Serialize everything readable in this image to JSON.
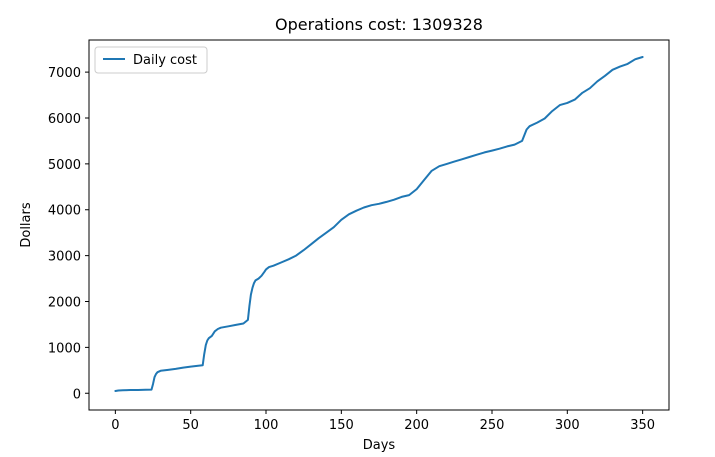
{
  "chart_data": {
    "type": "line",
    "title": "Operations cost: 1309328",
    "xlabel": "Days",
    "ylabel": "Dollars",
    "xlim": [
      -17.5,
      367.5
    ],
    "ylim": [
      -365,
      7700
    ],
    "xticks": [
      0,
      50,
      100,
      150,
      200,
      250,
      300,
      350
    ],
    "yticks": [
      0,
      1000,
      2000,
      3000,
      4000,
      5000,
      6000,
      7000
    ],
    "grid": false,
    "legend_position": "upper-left",
    "colors": {
      "series": "#1f77b4"
    },
    "series": [
      {
        "name": "Daily cost",
        "x": [
          0,
          2,
          5,
          10,
          15,
          20,
          24,
          25,
          26,
          27,
          28,
          30,
          35,
          40,
          45,
          50,
          55,
          58,
          59,
          60,
          61,
          62,
          64,
          66,
          68,
          70,
          75,
          80,
          85,
          88,
          89,
          90,
          91,
          92,
          93,
          95,
          97,
          99,
          100,
          102,
          105,
          110,
          115,
          120,
          125,
          130,
          135,
          140,
          145,
          150,
          155,
          160,
          165,
          170,
          175,
          180,
          185,
          190,
          195,
          200,
          205,
          210,
          215,
          220,
          225,
          230,
          235,
          240,
          245,
          250,
          255,
          260,
          265,
          270,
          273,
          275,
          280,
          285,
          290,
          295,
          300,
          305,
          310,
          315,
          320,
          325,
          330,
          335,
          340,
          345,
          350
        ],
        "y": [
          50,
          60,
          65,
          70,
          72,
          75,
          80,
          200,
          350,
          420,
          460,
          490,
          510,
          530,
          560,
          580,
          600,
          610,
          850,
          1050,
          1150,
          1200,
          1250,
          1350,
          1400,
          1430,
          1460,
          1490,
          1520,
          1600,
          1900,
          2150,
          2300,
          2400,
          2460,
          2500,
          2560,
          2650,
          2700,
          2750,
          2780,
          2850,
          2920,
          3000,
          3120,
          3250,
          3380,
          3500,
          3620,
          3780,
          3900,
          3980,
          4050,
          4100,
          4130,
          4170,
          4220,
          4280,
          4320,
          4450,
          4650,
          4850,
          4950,
          5000,
          5050,
          5100,
          5150,
          5200,
          5250,
          5290,
          5330,
          5380,
          5420,
          5500,
          5750,
          5820,
          5900,
          5990,
          6150,
          6280,
          6330,
          6400,
          6550,
          6650,
          6800,
          6920,
          7050,
          7120,
          7180,
          7280,
          7330
        ]
      }
    ]
  }
}
